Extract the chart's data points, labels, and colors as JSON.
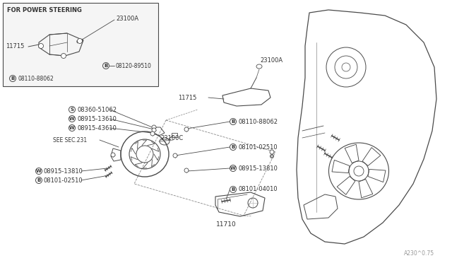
{
  "bg_color": "#ffffff",
  "line_color": "#4a4a4a",
  "text_color": "#333333",
  "fig_width": 6.4,
  "fig_height": 3.72,
  "watermark": "A230^0.75",
  "inset_label": "FOR POWER STEERING",
  "lc": "#4a4a4a",
  "labels": {
    "inset_23100A": "23100A",
    "inset_11715": "11715",
    "inset_08120": "08120-89510",
    "inset_08110": "08110-88062",
    "main_23100A": "23100A",
    "main_11715": "11715",
    "s_08360": "08360-51062",
    "w_13610": "08915-13610",
    "w_43610": "08915-43610",
    "see_sec": "SEE SEC.231",
    "label_23100C": "23100C",
    "b_08110_r": "08110-88062",
    "b_02510_r": "08101-02510",
    "w_13810_r": "08915-13810",
    "w_13810_l": "08915-13810",
    "b_02510_l": "08101-02510",
    "b_04010": "08101-04010",
    "label_11710": "11710"
  }
}
